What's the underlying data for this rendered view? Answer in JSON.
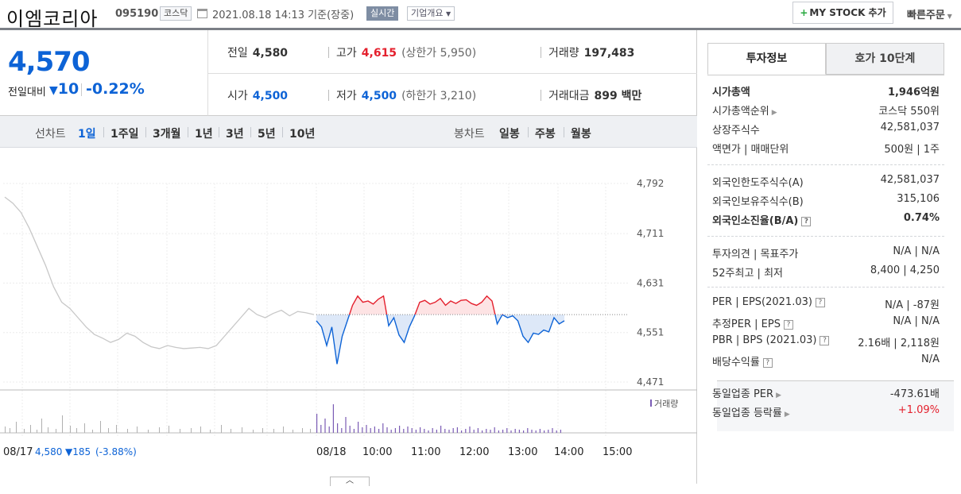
{
  "header": {
    "name": "이엠코리아",
    "code": "095190",
    "market": "코스닥",
    "datetime": "2021.08.18 14:13",
    "basis": "기준(장중)",
    "live_badge": "실시간",
    "corp_overview": "기업개요",
    "mystock_label": "MY STOCK 추가",
    "quick_order": "빠른주문"
  },
  "price": {
    "current": "4,570",
    "prev_label": "전일대비",
    "change": "10",
    "change_pct": "-0.22%"
  },
  "stats": {
    "prev_close_label": "전일",
    "prev_close": "4,580",
    "high_label": "고가",
    "high": "4,615",
    "upper_limit": "(상한가 5,950)",
    "volume_label": "거래량",
    "volume": "197,483",
    "open_label": "시가",
    "open": "4,500",
    "low_label": "저가",
    "low": "4,500",
    "lower_limit": "(하한가 3,210)",
    "amount_label": "거래대금",
    "amount": "899 백만"
  },
  "period": {
    "line_label": "선차트",
    "line_options": [
      "1일",
      "1주일",
      "3개월",
      "1년",
      "3년",
      "5년",
      "10년"
    ],
    "selected": "1일",
    "candle_label": "봉차트",
    "candle_options": [
      "일봉",
      "주봉",
      "월봉"
    ]
  },
  "chart_data": {
    "type": "line",
    "y_ticks": [
      "4,792",
      "4,711",
      "4,631",
      "4,551",
      "4,471"
    ],
    "ylim": [
      4471,
      4792
    ],
    "prev_close": 4580,
    "x_ticks": [
      "08/17",
      "08/18",
      "10:00",
      "11:00",
      "12:00",
      "13:00",
      "14:00",
      "15:00"
    ],
    "prev_day_summary": {
      "date": "08/17",
      "close": "4,580",
      "change": "▼185",
      "pct": "(-3.88%)"
    },
    "volume_legend": "거래량",
    "series": [
      {
        "name": "08/17",
        "values": [
          4770,
          4760,
          4745,
          4720,
          4690,
          4660,
          4625,
          4600,
          4590,
          4575,
          4560,
          4548,
          4542,
          4535,
          4540,
          4550,
          4545,
          4535,
          4528,
          4525,
          4530,
          4527,
          4525,
          4526,
          4527,
          4525,
          4530,
          4545,
          4560,
          4575,
          4590,
          4580,
          4575,
          4582,
          4587,
          4578,
          4585,
          4583,
          4580
        ]
      },
      {
        "name": "08/18",
        "values": [
          4570,
          4560,
          4530,
          4560,
          4500,
          4545,
          4570,
          4595,
          4610,
          4600,
          4602,
          4597,
          4605,
          4610,
          4562,
          4575,
          4547,
          4535,
          4560,
          4578,
          4600,
          4603,
          4597,
          4600,
          4606,
          4595,
          4602,
          4598,
          4603,
          4604,
          4598,
          4595,
          4600,
          4610,
          4602,
          4565,
          4580,
          4575,
          4578,
          4570,
          4545,
          4535,
          4550,
          4548,
          4555,
          4552,
          4575,
          4565,
          4570
        ]
      }
    ]
  },
  "sidebar": {
    "tab_invest": "투자정보",
    "tab_hoga": "호가 10단계",
    "rows": [
      {
        "k": "시가총액",
        "v": "1,946억원",
        "bold": true
      },
      {
        "k": "시가총액순위",
        "v": "코스닥 550위"
      },
      {
        "k": "상장주식수",
        "v": "42,581,037"
      },
      {
        "k": "액면가 | 매매단위",
        "v": "500원 | 1주"
      },
      {
        "k": "외국인한도주식수(A)",
        "v": "42,581,037"
      },
      {
        "k": "외국인보유주식수(B)",
        "v": "315,106"
      },
      {
        "k": "외국인소진율(B/A)",
        "v": "0.74%",
        "bold": true
      },
      {
        "k": "투자의견 | 목표주가",
        "v": "N/A | N/A"
      },
      {
        "k": "52주최고 | 최저",
        "v": "8,400 | 4,250"
      },
      {
        "k": "PER | EPS(2021.03)",
        "v": "N/A | -87원"
      },
      {
        "k": "추정PER | EPS",
        "v": "N/A | N/A"
      },
      {
        "k": "PBR | BPS (2021.03)",
        "v": "2.16배 | 2,118원"
      },
      {
        "k": "배당수익률",
        "v": "N/A"
      },
      {
        "k": "동일업종 PER",
        "v": "-473.61배"
      },
      {
        "k": "동일업종 등락률",
        "v": "+1.09%"
      }
    ]
  },
  "colors": {
    "up": "#e4202d",
    "down": "#0d63d6",
    "accent_blue": "#0d63d6"
  }
}
